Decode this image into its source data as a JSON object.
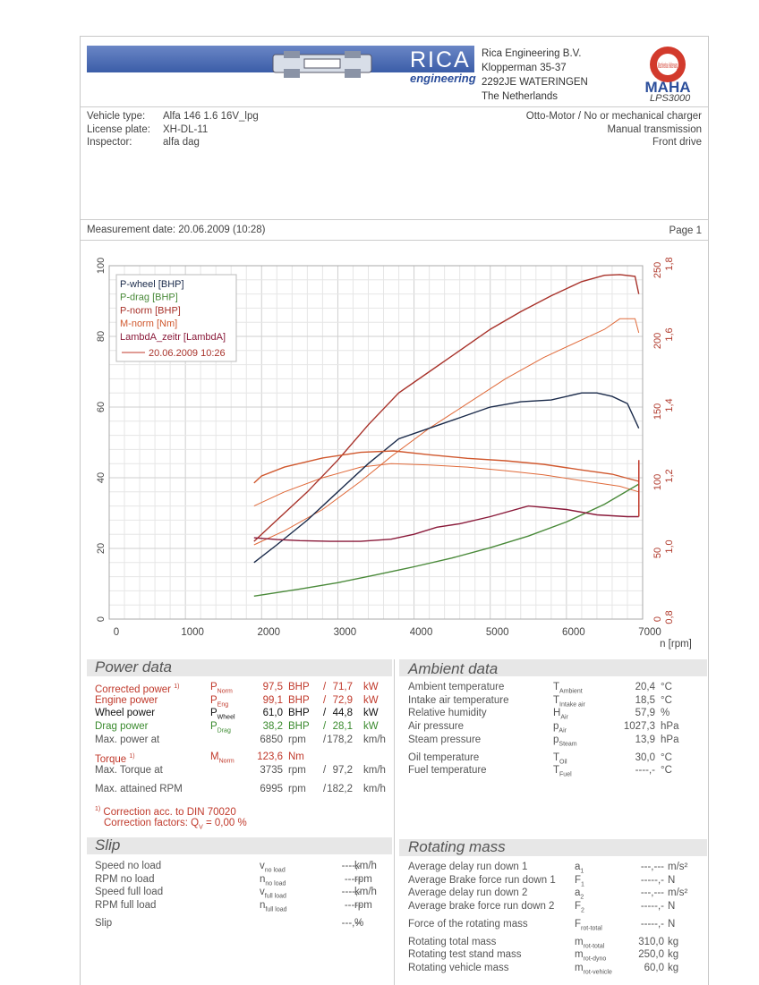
{
  "header": {
    "brand": "RICA",
    "brand_sub": "engineering",
    "address": [
      "Rica Engineering B.V.",
      "Klopperman 35-37",
      "2292JE WATERINGEN",
      "The Netherlands"
    ],
    "logo_text": "MAHA",
    "logo_ring": "Maschinenbau Haldenwang",
    "model": "LPS3000"
  },
  "vehicle": {
    "labels": [
      "Vehicle type:",
      "License plate:",
      "Inspector:"
    ],
    "values": [
      "Alfa 146 1.6 16V_lpg",
      "XH-DL-11",
      "alfa dag"
    ],
    "right": [
      "Otto-Motor / No or mechanical charger",
      "Manual transmission",
      "Front drive"
    ]
  },
  "measurement": {
    "date": "Measurement date: 20.06.2009 (10:28)",
    "page": "Page 1"
  },
  "chart_data": {
    "type": "line",
    "xlabel": "n [rpm]",
    "xlim": [
      0,
      7000
    ],
    "x_ticks": [
      "0",
      "1000",
      "2000",
      "3000",
      "4000",
      "5000",
      "6000",
      "7000"
    ],
    "ylim": [
      0,
      100
    ],
    "y_ticks": [
      "0",
      "20",
      "40",
      "60",
      "80",
      "100"
    ],
    "y2_ticks": [
      "0",
      "50",
      "100",
      "150",
      "200",
      "250"
    ],
    "y3_ticks": [
      "0,8",
      "1,0",
      "1,2",
      "1,4",
      "1,6",
      "1,8"
    ],
    "grid": true,
    "legend": "top-left",
    "legend_date": "20.06.2009 10:26",
    "series": [
      {
        "name": "P-wheel [BHP]",
        "color": "#1a2a4a",
        "x": [
          1900,
          2200,
          2600,
          3000,
          3400,
          3800,
          4200,
          4600,
          5000,
          5400,
          5800,
          6200,
          6400,
          6600,
          6800,
          6950
        ],
        "y": [
          16,
          21,
          28,
          36,
          44,
          51,
          54,
          57,
          60,
          61.5,
          62,
          64,
          64,
          63,
          61,
          54
        ]
      },
      {
        "name": "P-drag [BHP]",
        "color": "#4a8a3a",
        "x": [
          1900,
          2500,
          3000,
          3500,
          4000,
          4500,
          5000,
          5500,
          6000,
          6500,
          6950
        ],
        "y": [
          6.5,
          8.5,
          10.3,
          12.5,
          14.8,
          17.3,
          20.2,
          23.5,
          27.5,
          32.5,
          38.2
        ]
      },
      {
        "name": "P-norm [BHP]",
        "color": "#a8322a",
        "x": [
          1900,
          2200,
          2600,
          3000,
          3400,
          3800,
          4200,
          4600,
          5000,
          5400,
          5800,
          6200,
          6500,
          6700,
          6900,
          6950
        ],
        "y": [
          22,
          28,
          36,
          45,
          55,
          64,
          70,
          76,
          82,
          87,
          91.5,
          95.5,
          97.3,
          97.5,
          97,
          92
        ]
      },
      {
        "name": "M-norm [Nm]",
        "color": "#d0582e",
        "x": [
          1900,
          2000,
          2300,
          2800,
          3300,
          3735,
          4200,
          4700,
          5200,
          5700,
          6200,
          6600,
          6950
        ],
        "y": [
          38.5,
          40.5,
          43,
          45.6,
          47.2,
          47.6,
          46.5,
          45.5,
          44.8,
          43.8,
          42.2,
          41,
          39
        ]
      },
      {
        "name": "LambdA_zeitr [LambdA]",
        "color": "#8a1a3a",
        "x": [
          1900,
          2200,
          2500,
          2900,
          3300,
          3700,
          4000,
          4300,
          4600,
          5000,
          5500,
          6000,
          6400,
          6800,
          6950
        ],
        "y": [
          23,
          22.5,
          22.2,
          22,
          22,
          22.6,
          24,
          26,
          27,
          29,
          32,
          31,
          29.5,
          29,
          29
        ]
      }
    ],
    "thin_series": [
      {
        "color": "#e06a3a",
        "x": [
          1900,
          2300,
          2800,
          3300,
          3700,
          4200,
          4700,
          5200,
          5700,
          6200,
          6700,
          6950
        ],
        "y": [
          32,
          36,
          40,
          43,
          44,
          43.6,
          43,
          42,
          40.8,
          39.2,
          37.6,
          36
        ]
      },
      {
        "color": "#e06a3a",
        "x": [
          1900,
          2300,
          2800,
          3300,
          3700,
          4200,
          4700,
          5200,
          5700,
          6200,
          6500,
          6700,
          6900,
          6950
        ],
        "y": [
          21,
          25,
          31,
          39,
          46,
          54,
          61,
          68,
          74,
          79,
          82,
          85,
          85,
          81
        ]
      }
    ]
  },
  "power": {
    "title": "Power data",
    "rows": [
      {
        "label": "Corrected power",
        "sup": "1)",
        "sym": "P",
        "sub": "Norm",
        "v1": "97,5",
        "u1": "BHP",
        "v2": "71,7",
        "u2": "kW",
        "cls": "red"
      },
      {
        "label": "Engine power",
        "sup": "",
        "sym": "P",
        "sub": "Eng",
        "v1": "99,1",
        "u1": "BHP",
        "v2": "72,9",
        "u2": "kW",
        "cls": "red"
      },
      {
        "label": "Wheel power",
        "sup": "",
        "sym": "P",
        "sub": "Wheel",
        "v1": "61,0",
        "u1": "BHP",
        "v2": "44,8",
        "u2": "kW",
        "cls": "blk"
      },
      {
        "label": "Drag power",
        "sup": "",
        "sym": "P",
        "sub": "Drag",
        "v1": "38,2",
        "u1": "BHP",
        "v2": "28,1",
        "u2": "kW",
        "cls": "grn"
      },
      {
        "label": "Max. power at",
        "sup": "",
        "sym": "",
        "sub": "",
        "v1": "6850",
        "u1": "rpm",
        "v2": "178,2",
        "u2": "km/h",
        "cls": "gry"
      }
    ],
    "torque": {
      "label": "Torque",
      "sup": "1)",
      "sym": "M",
      "sub": "Norm",
      "v1": "123,6",
      "u1": "Nm"
    },
    "torque_at": {
      "label": "Max. Torque at",
      "v1": "3735",
      "u1": "rpm",
      "v2": "97,2",
      "u2": "km/h"
    },
    "max_rpm": {
      "label": "Max. attained RPM",
      "v1": "6995",
      "u1": "rpm",
      "v2": "182,2",
      "u2": "km/h"
    },
    "note1": "Correction acc. to DIN 70020",
    "note2": "Correction factors: Q",
    "note2_sub": "V",
    "note2_val": " =   0,00 %"
  },
  "ambient": {
    "title": "Ambient data",
    "rows": [
      {
        "label": "Ambient temperature",
        "sym": "T",
        "sub": "Ambient",
        "v": "20,4",
        "u": "°C"
      },
      {
        "label": "Intake air temperature",
        "sym": "T",
        "sub": "Intake air",
        "v": "18,5",
        "u": "°C"
      },
      {
        "label": "Relative humidity",
        "sym": "H",
        "sub": "Air",
        "v": "57,9",
        "u": "%"
      },
      {
        "label": "Air pressure",
        "sym": "p",
        "sub": "Air",
        "v": "1027,3",
        "u": "hPa"
      },
      {
        "label": "Steam pressure",
        "sym": "p",
        "sub": "Steam",
        "v": "13,9",
        "u": "hPa"
      },
      {
        "label": "Oil temperature",
        "sym": "T",
        "sub": "Oil",
        "v": "30,0",
        "u": "°C"
      },
      {
        "label": "Fuel temperature",
        "sym": "T",
        "sub": "Fuel",
        "v": "----,-",
        "u": "°C"
      }
    ]
  },
  "slip": {
    "title": "Slip",
    "rows": [
      {
        "label": "Speed no load",
        "sym": "v",
        "sub": "no load",
        "v": "----,-",
        "u": "km/h"
      },
      {
        "label": "RPM no load",
        "sym": "n",
        "sub": "no load",
        "v": "-----",
        "u": "rpm"
      },
      {
        "label": "Speed full load",
        "sym": "v",
        "sub": "full load",
        "v": "----,-",
        "u": "km/h"
      },
      {
        "label": "RPM full load",
        "sym": "n",
        "sub": "full load",
        "v": "-----",
        "u": "rpm"
      },
      {
        "label": "Slip",
        "sym": "",
        "sub": "",
        "v": "---,--",
        "u": "%"
      }
    ]
  },
  "rotating": {
    "title": "Rotating mass",
    "rows": [
      {
        "label": "Average delay run down 1",
        "sym": "a",
        "sub": "1",
        "v": "---,---",
        "u": "m/s²"
      },
      {
        "label": "Average Brake force run down 1",
        "sym": "F",
        "sub": "1",
        "v": "-----,-",
        "u": "N"
      },
      {
        "label": "Average delay run down 2",
        "sym": "a",
        "sub": "2",
        "v": "---,---",
        "u": "m/s²"
      },
      {
        "label": "Average brake force run down 2",
        "sym": "F",
        "sub": "2",
        "v": "-----,-",
        "u": "N"
      },
      {
        "label": "Force of the rotating mass",
        "sym": "F",
        "sub": "rot-total",
        "v": "-----,-",
        "u": "N"
      },
      {
        "label": "Rotating total mass",
        "sym": "m",
        "sub": "rot-total",
        "v": "310,0",
        "u": "kg"
      },
      {
        "label": "Rotating test stand mass",
        "sym": "m",
        "sub": "rot-dyno",
        "v": "250,0",
        "u": "kg"
      },
      {
        "label": "Rotating vehicle mass",
        "sym": "m",
        "sub": "rot-vehicle",
        "v": "60,0",
        "u": "kg"
      }
    ]
  }
}
